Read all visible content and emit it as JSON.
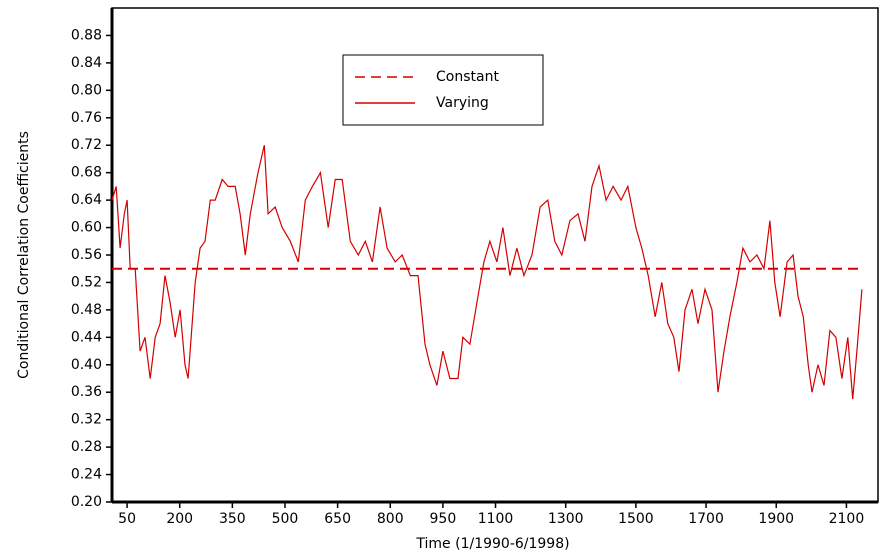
{
  "chart_data": {
    "type": "line",
    "xlabel": "Time (1/1990-6/1998)",
    "ylabel": "Conditional Correlation Coefficients",
    "xlim": [
      7,
      2190
    ],
    "ylim": [
      0.2,
      0.92
    ],
    "xticks": [
      50,
      200,
      350,
      500,
      650,
      800,
      950,
      1100,
      1300,
      1500,
      1700,
      1900,
      2100
    ],
    "yticks": [
      {
        "value": 0.2,
        "label": "0.20"
      },
      {
        "value": 0.24,
        "label": "0.24"
      },
      {
        "value": 0.28,
        "label": "0.28"
      },
      {
        "value": 0.32,
        "label": "0.32"
      },
      {
        "value": 0.36,
        "label": "0.36"
      },
      {
        "value": 0.4,
        "label": "0.40"
      },
      {
        "value": 0.44,
        "label": "0.44"
      },
      {
        "value": 0.48,
        "label": "0.48"
      },
      {
        "value": 0.52,
        "label": "0.52"
      },
      {
        "value": 0.56,
        "label": "0.56"
      },
      {
        "value": 0.6,
        "label": "0.60"
      },
      {
        "value": 0.64,
        "label": "0.64"
      },
      {
        "value": 0.68,
        "label": "0.68"
      },
      {
        "value": 0.72,
        "label": "0.72"
      },
      {
        "value": 0.76,
        "label": "0.76"
      },
      {
        "value": 0.8,
        "label": "0.80"
      },
      {
        "value": 0.84,
        "label": "0.84"
      },
      {
        "value": 0.88,
        "label": "0.88"
      }
    ],
    "series": [
      {
        "name": "Constant",
        "color": "#d40000",
        "line_style": "dashed",
        "x": [
          7,
          2144
        ],
        "values": [
          0.54,
          0.54
        ]
      },
      {
        "name": "Varying",
        "color": "#d40000",
        "line_style": "solid",
        "x": [
          7,
          19,
          30,
          42,
          50,
          59,
          73,
          87,
          101,
          116,
          130,
          144,
          158,
          173,
          187,
          201,
          215,
          224,
          244,
          258,
          272,
          287,
          301,
          321,
          338,
          358,
          372,
          387,
          401,
          423,
          441,
          452,
          472,
          492,
          515,
          538,
          558,
          578,
          601,
          623,
          643,
          663,
          686,
          709,
          729,
          749,
          771,
          791,
          814,
          834,
          857,
          879,
          899,
          913,
          933,
          950,
          970,
          993,
          1007,
          1027,
          1050,
          1067,
          1084,
          1104,
          1121,
          1141,
          1161,
          1181,
          1204,
          1227,
          1249,
          1269,
          1289,
          1312,
          1335,
          1355,
          1375,
          1395,
          1415,
          1435,
          1458,
          1477,
          1500,
          1517,
          1535,
          1555,
          1574,
          1591,
          1608,
          1623,
          1640,
          1660,
          1677,
          1697,
          1717,
          1734,
          1751,
          1768,
          1788,
          1805,
          1825,
          1845,
          1865,
          1882,
          1896,
          1911,
          1931,
          1948,
          1962,
          1977,
          1991,
          2002,
          2019,
          2036,
          2053,
          2070,
          2087,
          2104,
          2118,
          2130,
          2144
        ],
        "values": [
          0.64,
          0.66,
          0.57,
          0.62,
          0.64,
          0.54,
          0.54,
          0.42,
          0.44,
          0.38,
          0.44,
          0.46,
          0.53,
          0.49,
          0.44,
          0.48,
          0.4,
          0.38,
          0.52,
          0.57,
          0.58,
          0.64,
          0.64,
          0.67,
          0.66,
          0.66,
          0.62,
          0.56,
          0.62,
          0.68,
          0.72,
          0.62,
          0.63,
          0.6,
          0.58,
          0.55,
          0.64,
          0.66,
          0.68,
          0.6,
          0.67,
          0.67,
          0.58,
          0.56,
          0.58,
          0.55,
          0.63,
          0.57,
          0.55,
          0.56,
          0.53,
          0.53,
          0.43,
          0.4,
          0.37,
          0.42,
          0.38,
          0.38,
          0.44,
          0.43,
          0.5,
          0.55,
          0.58,
          0.55,
          0.6,
          0.53,
          0.57,
          0.53,
          0.56,
          0.63,
          0.64,
          0.58,
          0.56,
          0.61,
          0.62,
          0.58,
          0.66,
          0.69,
          0.64,
          0.66,
          0.64,
          0.66,
          0.6,
          0.57,
          0.53,
          0.47,
          0.52,
          0.46,
          0.44,
          0.39,
          0.48,
          0.51,
          0.46,
          0.51,
          0.48,
          0.36,
          0.42,
          0.47,
          0.52,
          0.57,
          0.55,
          0.56,
          0.54,
          0.61,
          0.52,
          0.47,
          0.55,
          0.56,
          0.5,
          0.47,
          0.4,
          0.36,
          0.4,
          0.37,
          0.45,
          0.44,
          0.38,
          0.44,
          0.35,
          0.42,
          0.51
        ]
      }
    ]
  }
}
